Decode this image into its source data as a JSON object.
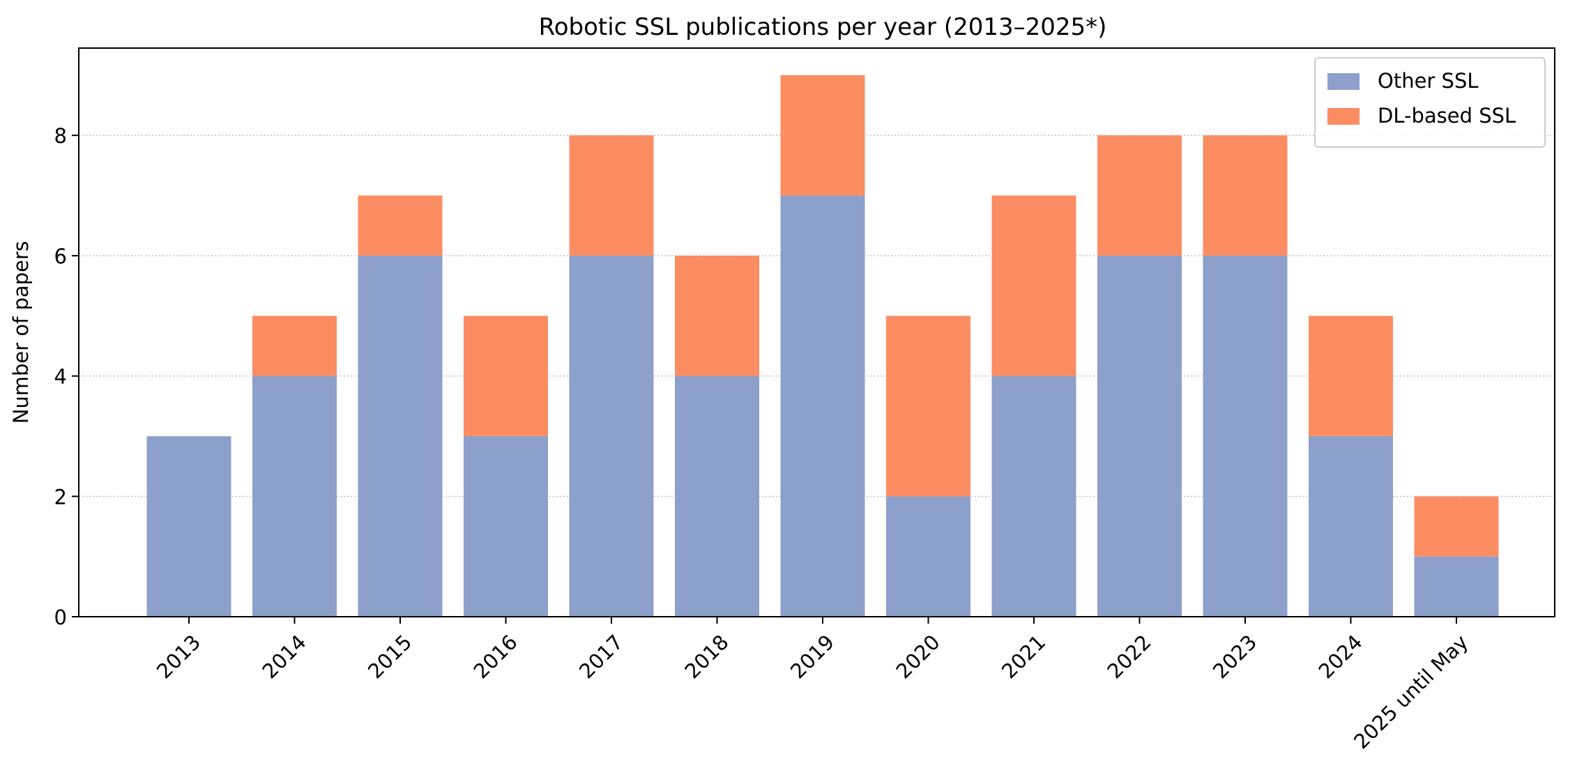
{
  "chart_data": {
    "type": "bar",
    "stacked": true,
    "title": "Robotic SSL publications per year (2013–2025*)",
    "xlabel": "",
    "ylabel": "Number of papers",
    "categories": [
      "2013",
      "2014",
      "2015",
      "2016",
      "2017",
      "2018",
      "2019",
      "2020",
      "2021",
      "2022",
      "2023",
      "2024",
      "2025 until May"
    ],
    "series": [
      {
        "name": "Other SSL",
        "color": "#8da0cb",
        "values": [
          3,
          4,
          6,
          3,
          6,
          4,
          7,
          2,
          4,
          6,
          6,
          3,
          1
        ]
      },
      {
        "name": "DL-based SSL",
        "color": "#fc8d62",
        "values": [
          0,
          1,
          1,
          2,
          2,
          2,
          2,
          3,
          3,
          2,
          2,
          2,
          1
        ]
      }
    ],
    "ylim": [
      0,
      9.45
    ],
    "yticks": [
      0,
      2,
      4,
      6,
      8
    ],
    "grid": {
      "y": true,
      "x": false
    },
    "legend_position": "top-right"
  }
}
